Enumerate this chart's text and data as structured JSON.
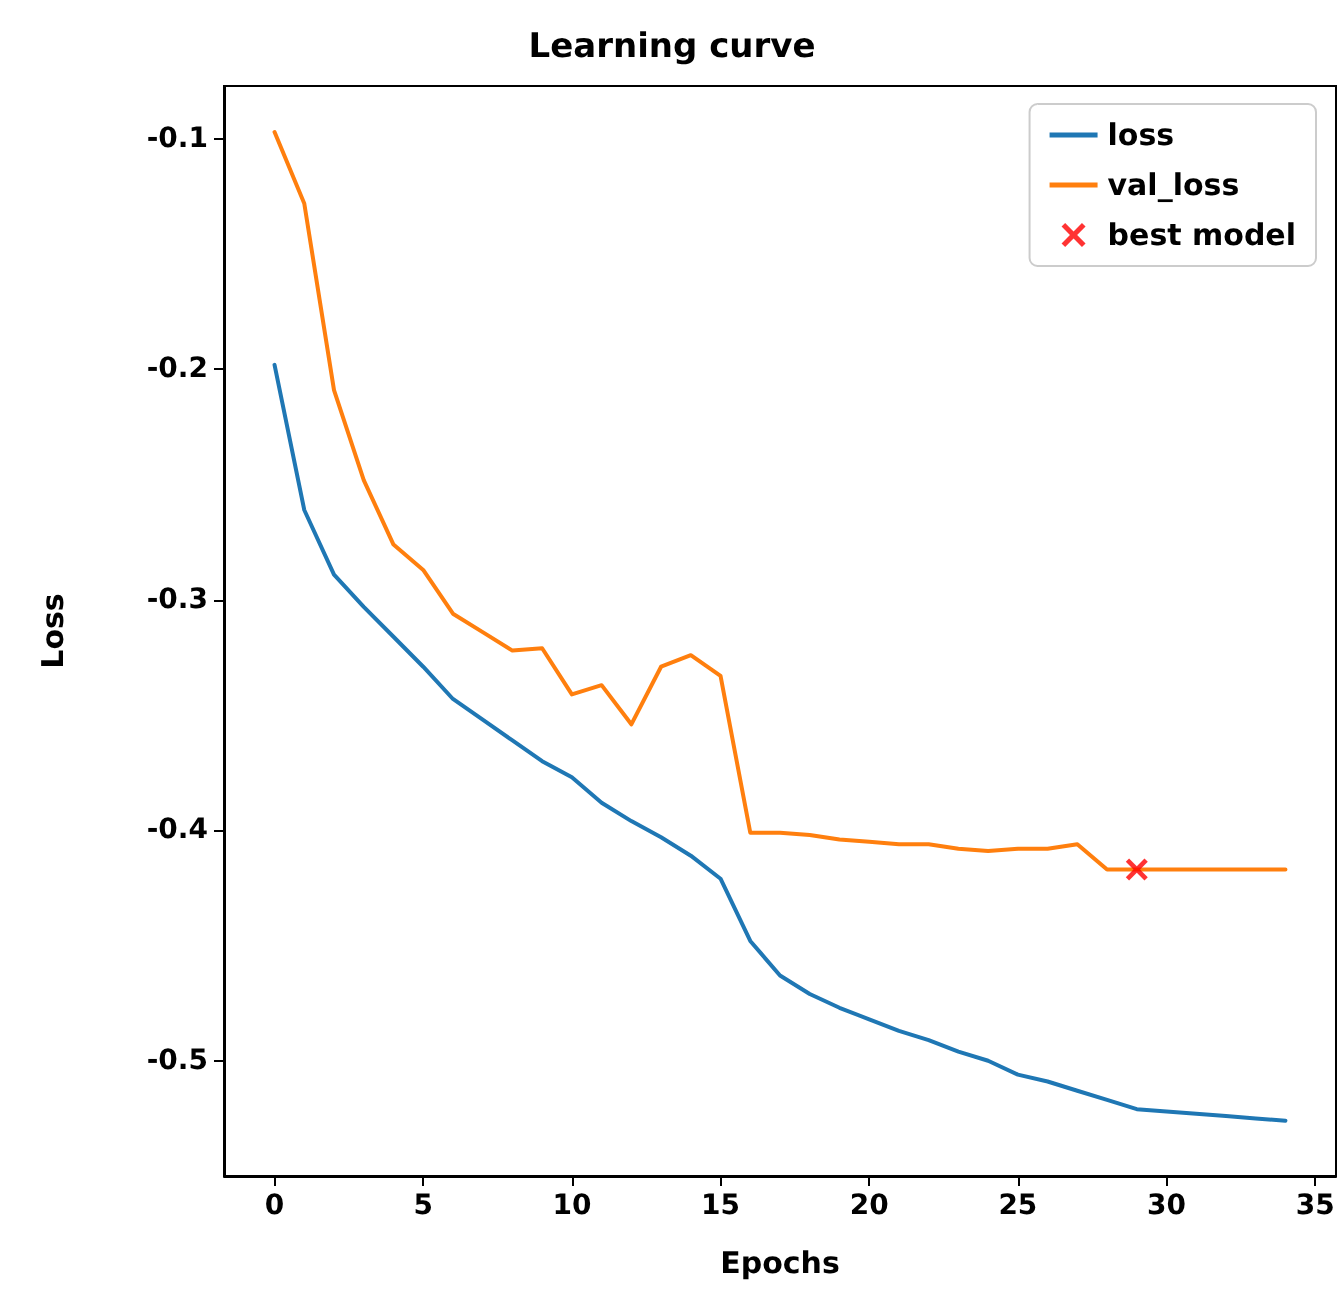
{
  "chart_data": {
    "type": "line",
    "title": "Learning curve",
    "xlabel": "Epochs",
    "ylabel": "Loss",
    "x": [
      0,
      1,
      2,
      3,
      4,
      5,
      6,
      7,
      8,
      9,
      10,
      11,
      12,
      13,
      14,
      15,
      16,
      17,
      18,
      19,
      20,
      21,
      22,
      23,
      24,
      25,
      26,
      27,
      28,
      29,
      30,
      31,
      32,
      33,
      34
    ],
    "series": [
      {
        "name": "loss",
        "color": "#1f77b4",
        "values": [
          -0.198,
          -0.261,
          -0.289,
          -0.303,
          -0.316,
          -0.329,
          -0.343,
          -0.352,
          -0.361,
          -0.37,
          -0.377,
          -0.388,
          -0.396,
          -0.403,
          -0.411,
          -0.421,
          -0.448,
          -0.463,
          -0.471,
          -0.477,
          -0.482,
          -0.487,
          -0.491,
          -0.496,
          -0.5,
          -0.506,
          -0.509,
          -0.513,
          -0.517,
          -0.521,
          -0.522,
          -0.523,
          -0.524,
          -0.525,
          -0.526
        ]
      },
      {
        "name": "val_loss",
        "color": "#ff7f0e",
        "values": [
          -0.097,
          -0.128,
          -0.209,
          -0.248,
          -0.276,
          -0.287,
          -0.306,
          -0.314,
          -0.322,
          -0.321,
          -0.341,
          -0.337,
          -0.354,
          -0.329,
          -0.324,
          -0.333,
          -0.401,
          -0.401,
          -0.402,
          -0.404,
          -0.405,
          -0.406,
          -0.406,
          -0.408,
          -0.409,
          -0.408,
          -0.408,
          -0.406,
          -0.417,
          -0.417,
          -0.417,
          -0.417,
          -0.417,
          -0.417,
          -0.417
        ]
      },
      {
        "name": "best model",
        "type": "scatter",
        "color": "#ff0000",
        "marker": "cross",
        "x": [
          29
        ],
        "values": [
          -0.417
        ]
      }
    ],
    "xlim": [
      -1.7,
      35.7
    ],
    "xticks": [
      0,
      5,
      10,
      15,
      20,
      25,
      30,
      35
    ],
    "ylim": [
      -0.55,
      -0.077
    ],
    "yticks": [
      -0.5,
      -0.4,
      -0.3,
      -0.2,
      -0.1
    ],
    "grid": false,
    "legend": "top right",
    "marker": "none"
  }
}
